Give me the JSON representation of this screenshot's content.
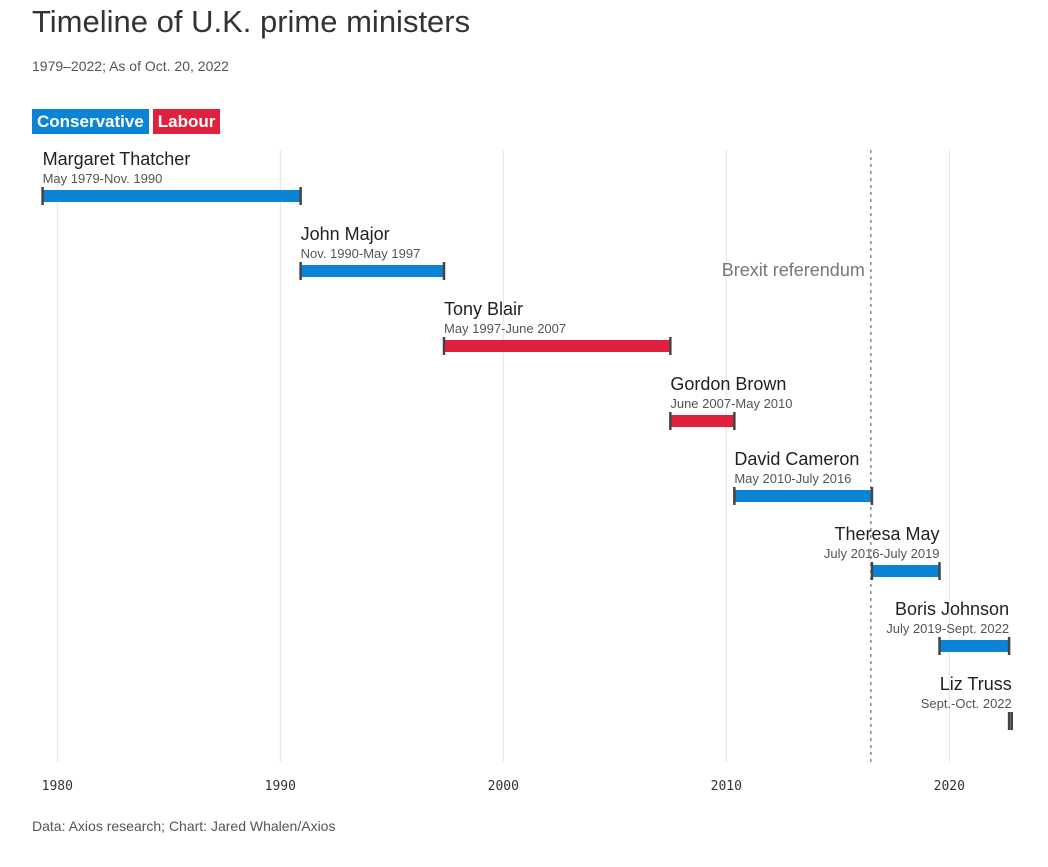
{
  "chart_data": {
    "type": "timeline",
    "title": "Timeline of U.K. prime ministers",
    "subtitle": "1979–2022; As of Oct. 20, 2022",
    "source": "Data: Axios research; Chart: Jared Whalen/Axios",
    "xlim": [
      1979,
      2022.9
    ],
    "x_ticks": [
      1980,
      1990,
      2000,
      2010,
      2020
    ],
    "grid": true,
    "legend": [
      {
        "name": "Conservative",
        "color": "#0b84d6"
      },
      {
        "name": "Labour",
        "color": "#e0213e"
      }
    ],
    "annotations": [
      {
        "label": "Brexit referendum",
        "x": 2016.48
      }
    ],
    "bars": [
      {
        "name": "Margaret Thatcher",
        "dates": "May 1979-Nov. 1990",
        "start": 1979.34,
        "end": 1990.91,
        "party": "Conservative",
        "label_align": "start"
      },
      {
        "name": "John Major",
        "dates": "Nov. 1990-May 1997",
        "start": 1990.91,
        "end": 1997.34,
        "party": "Conservative",
        "label_align": "start"
      },
      {
        "name": "Tony Blair",
        "dates": "May 1997-June 2007",
        "start": 1997.34,
        "end": 2007.49,
        "party": "Labour",
        "label_align": "start"
      },
      {
        "name": "Gordon Brown",
        "dates": "June 2007-May 2010",
        "start": 2007.49,
        "end": 2010.36,
        "party": "Labour",
        "label_align": "start"
      },
      {
        "name": "David Cameron",
        "dates": "May 2010-July 2016",
        "start": 2010.36,
        "end": 2016.53,
        "party": "Conservative",
        "label_align": "start"
      },
      {
        "name": "Theresa May",
        "dates": "July 2016-July 2019",
        "start": 2016.53,
        "end": 2019.56,
        "party": "Conservative",
        "label_align": "end"
      },
      {
        "name": "Boris Johnson",
        "dates": "July 2019-Sept. 2022",
        "start": 2019.56,
        "end": 2022.68,
        "party": "Conservative",
        "label_align": "end"
      },
      {
        "name": "Liz Truss",
        "dates": "Sept.-Oct. 2022",
        "start": 2022.68,
        "end": 2022.8,
        "party": "Conservative",
        "label_align": "end"
      }
    ]
  }
}
